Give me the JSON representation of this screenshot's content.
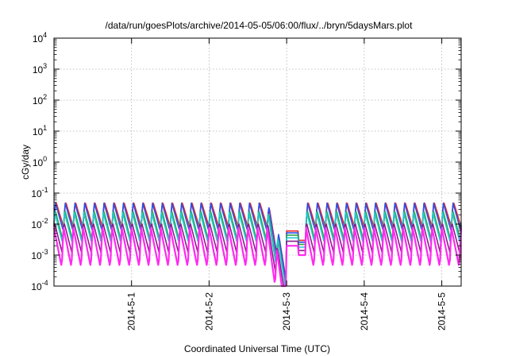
{
  "chart_data": {
    "type": "line",
    "title": "/data/run/goesPlots/archive/2014-05-05/06:00/flux/../bryn/5daysMars.plot",
    "xlabel": "Coordinated Universal Time (UTC)",
    "ylabel": "cGy/day",
    "yscale": "log",
    "xlim": [
      "2014-04-30T00:00",
      "2014-05-05T06:00"
    ],
    "ylim": [
      0.0001,
      10000
    ],
    "grid": true,
    "legend": "none",
    "y_ticks": [
      {
        "value": 0.0001,
        "base": "10",
        "exp": "-4"
      },
      {
        "value": 0.001,
        "base": "10",
        "exp": "-3"
      },
      {
        "value": 0.01,
        "base": "10",
        "exp": "-2"
      },
      {
        "value": 0.1,
        "base": "10",
        "exp": "-1"
      },
      {
        "value": 1,
        "base": "10",
        "exp": "0"
      },
      {
        "value": 10,
        "base": "10",
        "exp": "1"
      },
      {
        "value": 100,
        "base": "10",
        "exp": "2"
      },
      {
        "value": 1000,
        "base": "10",
        "exp": "3"
      },
      {
        "value": 10000,
        "base": "10",
        "exp": "4"
      }
    ],
    "x_ticks": [
      {
        "value": "2014-05-01T00:00",
        "label": "2014-5-1"
      },
      {
        "value": "2014-05-02T00:00",
        "label": "2014-5-2"
      },
      {
        "value": "2014-05-03T00:00",
        "label": "2014-5-3"
      },
      {
        "value": "2014-05-04T00:00",
        "label": "2014-5-4"
      },
      {
        "value": "2014-05-05T00:00",
        "label": "2014-5-5"
      }
    ],
    "sawtooth_period_hours": 3,
    "gap": {
      "start": "2014-05-03T00:00",
      "end": "2014-05-03T06:00"
    },
    "series": [
      {
        "color": "#e8232a",
        "peak": 0.055,
        "trough": 0.008
      },
      {
        "color": "#2a52e8",
        "peak": 0.05,
        "trough": 0.006
      },
      {
        "color": "#2fa44a",
        "peak": 0.03,
        "trough": 0.003
      },
      {
        "color": "#22c8d2",
        "peak": 0.025,
        "trough": 0.0025
      },
      {
        "color": "#8a1f8a",
        "peak": 0.012,
        "trough": 0.0012
      },
      {
        "color": "#ff2af0",
        "peak": 0.008,
        "trough": 0.0004
      }
    ]
  }
}
